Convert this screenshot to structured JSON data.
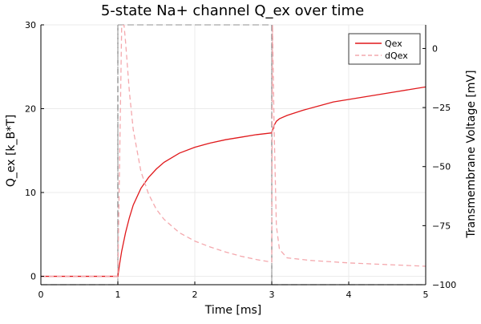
{
  "chart_data": {
    "type": "line",
    "title": "5-state Na+ channel Q_ex over time",
    "xlabel": "Time [ms]",
    "ylabel": "Q_ex [k_B*T]",
    "y2label": "Transmembrane Voltage [mV]",
    "xlim": [
      0,
      5
    ],
    "ylim": [
      -1,
      30
    ],
    "y2lim": [
      -100,
      10
    ],
    "xticks": [
      0,
      1,
      2,
      3,
      4,
      5
    ],
    "yticks": [
      0,
      10,
      20,
      30
    ],
    "y2ticks": [
      0,
      -25,
      -50,
      -75,
      -100
    ],
    "xtick_labels": [
      "0",
      "1",
      "2",
      "3",
      "4",
      "5"
    ],
    "ytick_labels": [
      "0",
      "10",
      "20",
      "30"
    ],
    "y2tick_labels": [
      "0",
      "−25",
      "−50",
      "−75",
      "−100"
    ],
    "grid": true,
    "legend_position": "top-right",
    "colors": {
      "Qex": "#e0191c",
      "dQex": "#f4a8ad",
      "voltage": "#a8a8a8",
      "vmarker": "#7a7a7a"
    },
    "series": [
      {
        "name": "Qex",
        "axis": "left",
        "style": "solid",
        "x": [
          0,
          0.5,
          0.99,
          1.0,
          1.02,
          1.05,
          1.1,
          1.15,
          1.2,
          1.3,
          1.4,
          1.5,
          1.6,
          1.8,
          2.0,
          2.2,
          2.4,
          2.6,
          2.8,
          2.99,
          3.0,
          3.03,
          3.06,
          3.1,
          3.2,
          3.4,
          3.6,
          3.8,
          4.0,
          4.2,
          4.4,
          4.6,
          4.8,
          5.0
        ],
        "y": [
          0,
          0,
          0,
          0,
          1.3,
          3.0,
          5.2,
          7.0,
          8.5,
          10.5,
          11.8,
          12.8,
          13.6,
          14.7,
          15.4,
          15.9,
          16.3,
          16.6,
          16.9,
          17.1,
          17.1,
          18.0,
          18.5,
          18.8,
          19.2,
          19.8,
          20.3,
          20.8,
          21.1,
          21.4,
          21.7,
          22.0,
          22.3,
          22.6
        ]
      },
      {
        "name": "dQex",
        "axis": "left",
        "style": "dashed",
        "x": [
          0,
          0.5,
          0.99,
          1.0,
          1.05,
          1.08,
          1.1,
          1.15,
          1.2,
          1.3,
          1.4,
          1.5,
          1.6,
          1.8,
          2.0,
          2.2,
          2.4,
          2.6,
          2.8,
          2.99,
          3.0,
          3.01,
          3.03,
          3.06,
          3.1,
          3.2,
          3.5,
          4.0,
          4.5,
          5.0
        ],
        "y": [
          0,
          0,
          0,
          0,
          30,
          30,
          28.0,
          22.0,
          17.5,
          12.5,
          9.8,
          8.0,
          6.8,
          5.2,
          4.2,
          3.5,
          2.9,
          2.4,
          2.0,
          1.7,
          1.7,
          30,
          18.0,
          6.0,
          3.2,
          2.2,
          1.9,
          1.6,
          1.4,
          1.2
        ]
      }
    ],
    "voltage_protocol": {
      "axis": "right",
      "style": "dashed",
      "x": [
        0,
        1,
        1,
        3,
        3,
        5
      ],
      "y": [
        -100,
        -100,
        10,
        10,
        -100,
        -100
      ]
    }
  }
}
